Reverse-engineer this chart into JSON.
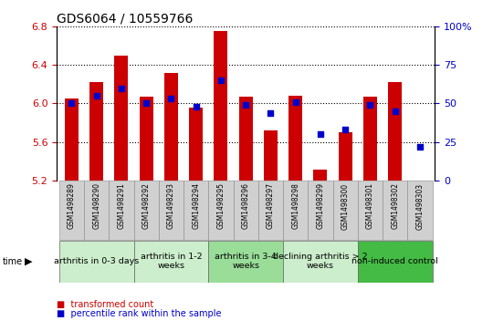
{
  "title": "GDS6064 / 10559766",
  "samples": [
    "GSM1498289",
    "GSM1498290",
    "GSM1498291",
    "GSM1498292",
    "GSM1498293",
    "GSM1498294",
    "GSM1498295",
    "GSM1498296",
    "GSM1498297",
    "GSM1498298",
    "GSM1498299",
    "GSM1498300",
    "GSM1498301",
    "GSM1498302",
    "GSM1498303"
  ],
  "transformed_count": [
    6.05,
    6.22,
    6.5,
    6.07,
    6.32,
    5.96,
    6.75,
    6.07,
    5.72,
    6.08,
    5.31,
    5.7,
    6.07,
    6.22,
    5.2
  ],
  "percentile_rank": [
    50,
    55,
    60,
    50,
    53,
    48,
    65,
    49,
    44,
    51,
    30,
    33,
    49,
    45,
    22
  ],
  "ylim_left": [
    5.2,
    6.8
  ],
  "ylim_right": [
    0,
    100
  ],
  "yticks_left": [
    5.2,
    5.6,
    6.0,
    6.4,
    6.8
  ],
  "yticks_right": [
    0,
    25,
    50,
    75,
    100
  ],
  "groups": [
    {
      "label": "arthritis in 0-3 days",
      "start": 0,
      "end": 3,
      "color": "#cceecc"
    },
    {
      "label": "arthritis in 1-2\nweeks",
      "start": 3,
      "end": 6,
      "color": "#cceecc"
    },
    {
      "label": "arthritis in 3-4\nweeks",
      "start": 6,
      "end": 9,
      "color": "#99dd99"
    },
    {
      "label": "declining arthritis > 2\nweeks",
      "start": 9,
      "end": 12,
      "color": "#cceecc"
    },
    {
      "label": "non-induced control",
      "start": 12,
      "end": 15,
      "color": "#44bb44"
    }
  ],
  "bar_color": "#cc0000",
  "dot_color": "#0000cc",
  "bar_bottom": 5.2,
  "title_fontsize": 10,
  "sample_label_fontsize": 5.5,
  "group_label_fontsize": 6.8,
  "axis_fontsize": 8,
  "bar_color_legend": "#cc0000",
  "dot_color_legend": "#0000cc"
}
